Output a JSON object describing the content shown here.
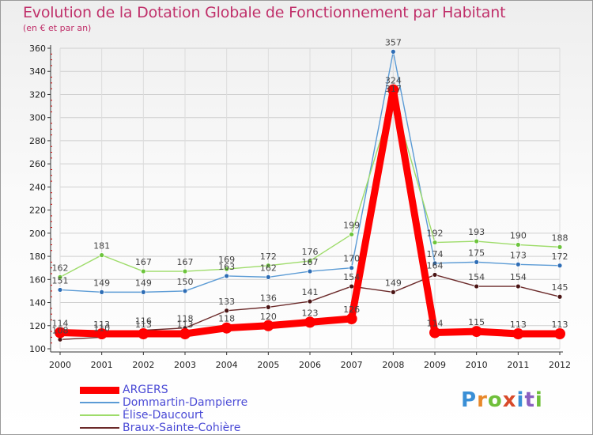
{
  "title": "Evolution de la Dotation Globale de Fonctionnement par Habitant",
  "subtitle": "(en € et par an)",
  "logo": {
    "text": "Proxiti",
    "letters": [
      "P",
      "r",
      "o",
      "x",
      "i",
      "t",
      "i"
    ],
    "colors": [
      "#3a8fd6",
      "#e8882a",
      "#6fbf3a",
      "#d84a2a",
      "#3a8fd6",
      "#8a5fc0",
      "#6fbf3a"
    ]
  },
  "chart_data": {
    "type": "line",
    "title": "Evolution de la Dotation Globale de Fonctionnement par Habitant",
    "subtitle": "(en € et par an)",
    "xlabel": "",
    "ylabel": "",
    "ylim": [
      100,
      360
    ],
    "yticks": [
      100,
      120,
      140,
      160,
      180,
      200,
      220,
      240,
      260,
      280,
      300,
      320,
      340,
      360
    ],
    "grid": true,
    "legend": "bottom-left",
    "categories": [
      "2000",
      "2001",
      "2002",
      "2003",
      "2004",
      "2005",
      "2006",
      "2007",
      "2008",
      "2009",
      "2010",
      "2011",
      "2012"
    ],
    "series": [
      {
        "name": "Dommartin-Dampierre",
        "color": "#5b9bd5",
        "marker": "#2e6db5",
        "emphasis": false,
        "values": [
          151,
          149,
          149,
          150,
          163,
          162,
          167,
          170,
          357,
          174,
          175,
          173,
          172
        ]
      },
      {
        "name": "Élise-Daucourt",
        "color": "#9edc6a",
        "marker": "#6cc43c",
        "emphasis": false,
        "values": [
          162,
          181,
          167,
          167,
          169,
          172,
          176,
          199,
          317,
          192,
          193,
          190,
          188
        ]
      },
      {
        "name": "Braux-Sainte-Cohière",
        "color": "#6b2a2a",
        "marker": "#4a1414",
        "emphasis": false,
        "values": [
          108,
          110,
          116,
          118,
          133,
          136,
          141,
          154,
          149,
          164,
          154,
          154,
          145
        ]
      },
      {
        "name": "ARGERS",
        "color": "#ff0000",
        "marker": "#ff0000",
        "emphasis": true,
        "values": [
          114,
          113,
          113,
          113,
          118,
          120,
          123,
          126,
          324,
          114,
          115,
          113,
          113
        ]
      }
    ]
  }
}
